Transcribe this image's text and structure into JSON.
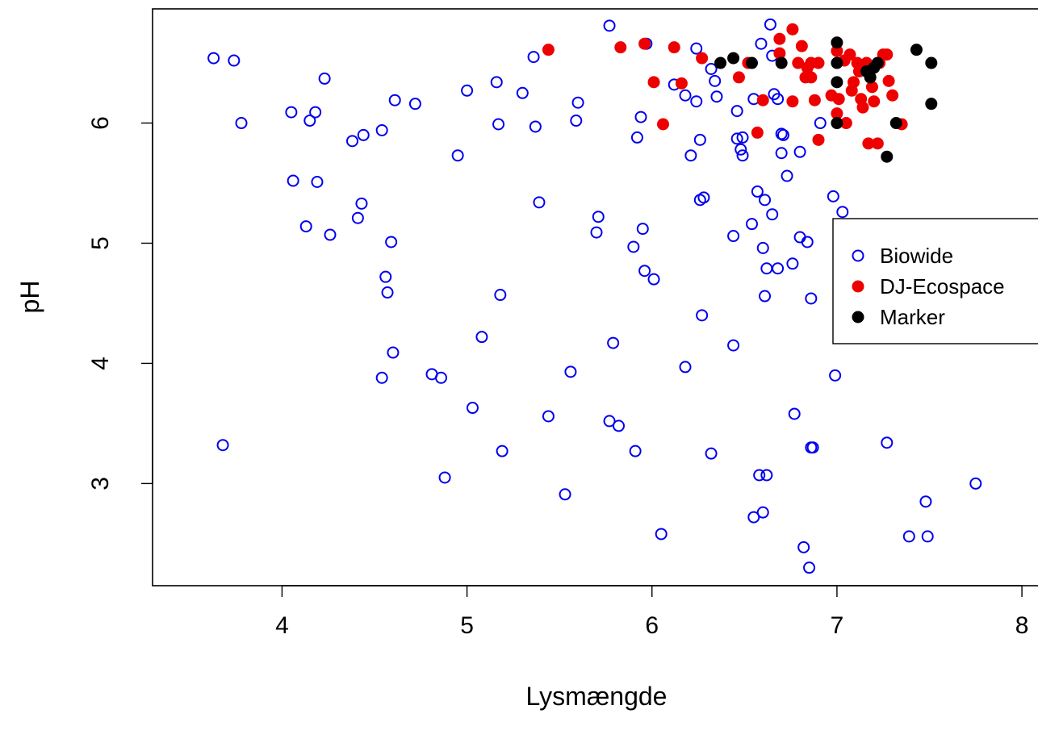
{
  "chart_data": {
    "type": "scatter",
    "title": "",
    "xlabel": "Lysmængde",
    "ylabel": "pH",
    "xlim": [
      3.3,
      8.1
    ],
    "ylim": [
      2.15,
      6.95
    ],
    "xticks": [
      4,
      5,
      6,
      7,
      8
    ],
    "yticks": [
      3,
      4,
      5,
      6
    ],
    "grid": false,
    "legend": {
      "placement": "right",
      "entries": [
        "Biowide",
        "DJ-Ecospace",
        "Marker"
      ]
    },
    "series": [
      {
        "name": "Biowide",
        "marker": "open-circle",
        "color": "#0000ee",
        "points": [
          [
            3.63,
            6.54
          ],
          [
            3.74,
            6.52
          ],
          [
            3.78,
            6.0
          ],
          [
            3.68,
            3.32
          ],
          [
            4.05,
            6.09
          ],
          [
            4.06,
            5.52
          ],
          [
            4.13,
            5.14
          ],
          [
            4.15,
            6.02
          ],
          [
            4.18,
            6.09
          ],
          [
            4.19,
            5.51
          ],
          [
            4.23,
            6.37
          ],
          [
            4.26,
            5.07
          ],
          [
            4.38,
            5.85
          ],
          [
            4.41,
            5.21
          ],
          [
            4.43,
            5.33
          ],
          [
            4.44,
            5.9
          ],
          [
            4.54,
            5.94
          ],
          [
            4.54,
            3.88
          ],
          [
            4.56,
            4.72
          ],
          [
            4.57,
            4.59
          ],
          [
            4.59,
            5.01
          ],
          [
            4.6,
            4.09
          ],
          [
            4.61,
            6.19
          ],
          [
            4.72,
            6.16
          ],
          [
            4.81,
            3.91
          ],
          [
            4.86,
            3.88
          ],
          [
            4.88,
            3.05
          ],
          [
            4.95,
            5.73
          ],
          [
            5.0,
            6.27
          ],
          [
            5.03,
            3.63
          ],
          [
            5.08,
            4.22
          ],
          [
            5.16,
            6.34
          ],
          [
            5.17,
            5.99
          ],
          [
            5.18,
            4.57
          ],
          [
            5.19,
            3.27
          ],
          [
            5.3,
            6.25
          ],
          [
            5.36,
            6.55
          ],
          [
            5.37,
            5.97
          ],
          [
            5.39,
            5.34
          ],
          [
            5.44,
            3.56
          ],
          [
            5.53,
            2.91
          ],
          [
            5.56,
            3.93
          ],
          [
            5.59,
            6.02
          ],
          [
            5.6,
            6.17
          ],
          [
            5.7,
            5.09
          ],
          [
            5.71,
            5.22
          ],
          [
            5.77,
            6.81
          ],
          [
            5.77,
            3.52
          ],
          [
            5.79,
            4.17
          ],
          [
            5.82,
            3.48
          ],
          [
            5.9,
            4.97
          ],
          [
            5.91,
            3.27
          ],
          [
            5.92,
            5.88
          ],
          [
            5.94,
            6.05
          ],
          [
            5.95,
            5.12
          ],
          [
            5.96,
            4.77
          ],
          [
            5.97,
            6.66
          ],
          [
            6.01,
            4.7
          ],
          [
            6.05,
            2.58
          ],
          [
            6.12,
            6.32
          ],
          [
            6.18,
            6.23
          ],
          [
            6.18,
            3.97
          ],
          [
            6.21,
            5.73
          ],
          [
            6.24,
            6.62
          ],
          [
            6.24,
            6.18
          ],
          [
            6.26,
            5.86
          ],
          [
            6.26,
            5.36
          ],
          [
            6.27,
            4.4
          ],
          [
            6.28,
            5.38
          ],
          [
            6.32,
            6.45
          ],
          [
            6.32,
            3.25
          ],
          [
            6.34,
            6.35
          ],
          [
            6.35,
            6.22
          ],
          [
            6.44,
            5.06
          ],
          [
            6.44,
            4.15
          ],
          [
            6.46,
            6.1
          ],
          [
            6.46,
            5.87
          ],
          [
            6.48,
            5.78
          ],
          [
            6.49,
            5.88
          ],
          [
            6.49,
            5.73
          ],
          [
            6.54,
            5.16
          ],
          [
            6.55,
            6.2
          ],
          [
            6.55,
            2.72
          ],
          [
            6.57,
            5.43
          ],
          [
            6.58,
            3.07
          ],
          [
            6.59,
            6.66
          ],
          [
            6.6,
            4.96
          ],
          [
            6.6,
            2.76
          ],
          [
            6.61,
            5.36
          ],
          [
            6.61,
            4.56
          ],
          [
            6.62,
            4.79
          ],
          [
            6.62,
            3.07
          ],
          [
            6.64,
            6.82
          ],
          [
            6.65,
            6.56
          ],
          [
            6.65,
            5.24
          ],
          [
            6.66,
            6.24
          ],
          [
            6.68,
            6.2
          ],
          [
            6.68,
            4.79
          ],
          [
            6.7,
            5.91
          ],
          [
            6.7,
            5.75
          ],
          [
            6.71,
            5.9
          ],
          [
            6.73,
            5.56
          ],
          [
            6.76,
            4.83
          ],
          [
            6.77,
            3.58
          ],
          [
            6.8,
            5.76
          ],
          [
            6.8,
            5.05
          ],
          [
            6.82,
            2.47
          ],
          [
            6.84,
            5.01
          ],
          [
            6.85,
            2.3
          ],
          [
            6.86,
            4.54
          ],
          [
            6.86,
            3.3
          ],
          [
            6.87,
            3.3
          ],
          [
            6.91,
            6.0
          ],
          [
            6.98,
            5.39
          ],
          [
            6.99,
            3.9
          ],
          [
            7.03,
            5.26
          ],
          [
            7.27,
            3.34
          ],
          [
            7.39,
            2.56
          ],
          [
            7.48,
            2.85
          ],
          [
            7.49,
            2.56
          ],
          [
            7.75,
            3.0
          ]
        ]
      },
      {
        "name": "DJ-Ecospace",
        "marker": "filled-circle",
        "color": "#ee0000",
        "points": [
          [
            5.44,
            6.61
          ],
          [
            5.83,
            6.63
          ],
          [
            5.96,
            6.66
          ],
          [
            6.01,
            6.34
          ],
          [
            6.06,
            5.99
          ],
          [
            6.12,
            6.63
          ],
          [
            6.16,
            6.33
          ],
          [
            6.27,
            6.54
          ],
          [
            6.47,
            6.38
          ],
          [
            6.52,
            6.5
          ],
          [
            6.57,
            5.92
          ],
          [
            6.6,
            6.19
          ],
          [
            6.69,
            6.7
          ],
          [
            6.69,
            6.58
          ],
          [
            6.76,
            6.78
          ],
          [
            6.76,
            6.18
          ],
          [
            6.79,
            6.5
          ],
          [
            6.81,
            6.64
          ],
          [
            6.83,
            6.38
          ],
          [
            6.84,
            6.46
          ],
          [
            6.86,
            6.5
          ],
          [
            6.86,
            6.38
          ],
          [
            6.88,
            6.19
          ],
          [
            6.9,
            6.5
          ],
          [
            6.9,
            5.86
          ],
          [
            6.97,
            6.23
          ],
          [
            7.0,
            6.6
          ],
          [
            7.0,
            6.08
          ],
          [
            7.01,
            6.2
          ],
          [
            7.04,
            6.52
          ],
          [
            7.05,
            6.0
          ],
          [
            7.07,
            6.57
          ],
          [
            7.08,
            6.27
          ],
          [
            7.09,
            6.34
          ],
          [
            7.11,
            6.5
          ],
          [
            7.12,
            6.43
          ],
          [
            7.13,
            6.2
          ],
          [
            7.14,
            6.13
          ],
          [
            7.16,
            6.5
          ],
          [
            7.17,
            5.83
          ],
          [
            7.19,
            6.3
          ],
          [
            7.2,
            6.18
          ],
          [
            7.22,
            5.83
          ],
          [
            7.23,
            6.5
          ],
          [
            7.25,
            6.57
          ],
          [
            7.27,
            6.57
          ],
          [
            7.28,
            6.35
          ],
          [
            7.3,
            6.23
          ],
          [
            7.35,
            5.99
          ]
        ]
      },
      {
        "name": "Marker",
        "marker": "filled-circle",
        "color": "#000000",
        "points": [
          [
            6.37,
            6.5
          ],
          [
            6.44,
            6.54
          ],
          [
            6.54,
            6.5
          ],
          [
            6.7,
            6.5
          ],
          [
            7.0,
            6.67
          ],
          [
            7.0,
            6.5
          ],
          [
            7.0,
            6.34
          ],
          [
            7.0,
            6.0
          ],
          [
            7.16,
            6.43
          ],
          [
            7.18,
            6.38
          ],
          [
            7.2,
            6.46
          ],
          [
            7.22,
            6.5
          ],
          [
            7.27,
            5.72
          ],
          [
            7.32,
            6.0
          ],
          [
            7.43,
            6.61
          ],
          [
            7.51,
            6.5
          ],
          [
            7.51,
            6.16
          ]
        ]
      }
    ]
  }
}
